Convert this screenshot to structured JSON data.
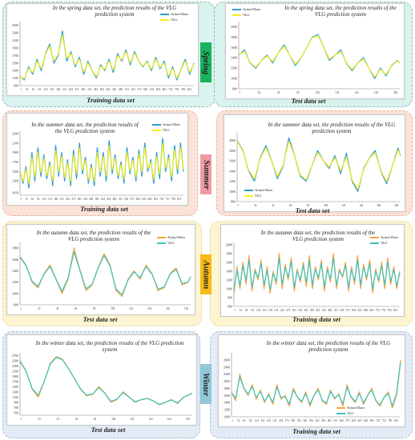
{
  "colors": {
    "spring_bg": "#d9f3ef",
    "summer_bg": "#fbe3d9",
    "autumn_bg": "#fdf5d2",
    "winter_bg": "#e3ecf6",
    "actual_blue": "#2c9ad6",
    "vlg_yellow": "#f2ef1c",
    "actual_orange": "#f7a541",
    "vlg_teal": "#3cc3b9",
    "spring_tag": "#18b25c",
    "summer_tag": "#f29aa3",
    "autumn_tag": "#f7ba18",
    "winter_tag": "#8fc8d8"
  },
  "seasons": [
    {
      "label": "Spring"
    },
    {
      "label": "Summer"
    },
    {
      "label": "Autumn"
    },
    {
      "label": "Winter"
    }
  ],
  "chart_data": [
    {
      "id": "spring-train",
      "type": "line",
      "season": "Spring",
      "title": "In the spring data set, the prediction results of the VLG prediction system",
      "xlabel": "Training data set",
      "ylim": [
        900,
        2600
      ],
      "yticks": [
        "900",
        "1100",
        "1300",
        "1500",
        "1700",
        "1900",
        "2100",
        "2300",
        "2500"
      ],
      "xticks": [
        "1",
        "31",
        "61",
        "91",
        "121",
        "151",
        "181",
        "211",
        "241",
        "271",
        "301",
        "331",
        "361",
        "391",
        "421",
        "451",
        "481",
        "511",
        "541",
        "571",
        "601",
        "631",
        "661",
        "691",
        "721",
        "751",
        "781",
        "811"
      ],
      "series": [
        {
          "name": "Actual Data",
          "color": "#2c9ad6"
        },
        {
          "name": "VLG",
          "color": "#f2ef1c"
        }
      ],
      "x": [
        1,
        21,
        41,
        61,
        81,
        101,
        121,
        141,
        161,
        181,
        201,
        221,
        241,
        261,
        281,
        301,
        321,
        341,
        361,
        381,
        401,
        421,
        441,
        461,
        481,
        501,
        521,
        541,
        561,
        581,
        601,
        621,
        641,
        661,
        681,
        701,
        721,
        741,
        761,
        781,
        801,
        821
      ],
      "y": [
        1150,
        1050,
        1400,
        1200,
        1600,
        1300,
        1750,
        2000,
        1500,
        1700,
        2350,
        1550,
        1800,
        1400,
        1650,
        1200,
        1550,
        1300,
        1100,
        1450,
        1300,
        1600,
        1250,
        1750,
        1550,
        1850,
        1450,
        1800,
        1550,
        1400,
        1550,
        1300,
        1650,
        1350,
        1550,
        1100,
        1400,
        1050,
        1350,
        1600,
        1200,
        1500
      ]
    },
    {
      "id": "spring-test",
      "type": "line",
      "season": "Spring",
      "title": "In the spring data set, the prediction results of the VLG prediction system",
      "xlabel": "Test data set",
      "ylim": [
        800,
        2100
      ],
      "yticks": [
        "800",
        "1000",
        "1200",
        "1400",
        "1600",
        "1800",
        "2000"
      ],
      "xticks": [
        "1",
        "32",
        "41",
        "91",
        "101",
        "121",
        "141",
        "161",
        "181"
      ],
      "series": [
        {
          "name": "Actual Data",
          "color": "#2c9ad6"
        },
        {
          "name": "VLG",
          "color": "#f2ef1c"
        }
      ],
      "x": [
        1,
        8,
        15,
        22,
        29,
        36,
        43,
        50,
        57,
        64,
        71,
        78,
        85,
        92,
        99,
        106,
        113,
        120,
        127,
        134,
        141,
        148,
        155,
        162,
        169,
        176,
        183,
        190,
        197,
        200
      ],
      "y": [
        1450,
        1550,
        1300,
        1200,
        1350,
        1450,
        1300,
        1500,
        1650,
        1450,
        1250,
        1400,
        1600,
        1800,
        1850,
        1600,
        1350,
        1450,
        1550,
        1300,
        1150,
        1300,
        1400,
        1200,
        1000,
        1200,
        1050,
        1250,
        1350,
        1300
      ]
    },
    {
      "id": "summer-train",
      "type": "line",
      "season": "Summer",
      "title": "In the summer data set, the prediction results of the VLG prediction system",
      "xlabel": "Training data set",
      "ylim": [
        1000,
        2350
      ],
      "yticks": [
        "1050",
        "1300",
        "1500",
        "1700",
        "1900",
        "2100",
        "2300"
      ],
      "xticks": [
        "1",
        "31",
        "61",
        "91",
        "121",
        "151",
        "181",
        "211",
        "241",
        "271",
        "301",
        "331",
        "361",
        "391",
        "421",
        "451",
        "481",
        "511",
        "541",
        "571",
        "601",
        "631",
        "661",
        "691",
        "721",
        "751",
        "781",
        "811"
      ],
      "series": [
        {
          "name": "Actual Data",
          "color": "#2c9ad6"
        },
        {
          "name": "VLG",
          "color": "#f2ef1c"
        }
      ],
      "x": [
        1,
        16,
        31,
        46,
        61,
        76,
        91,
        106,
        121,
        136,
        151,
        166,
        181,
        196,
        211,
        226,
        241,
        256,
        271,
        286,
        301,
        316,
        331,
        346,
        361,
        376,
        391,
        406,
        421,
        436,
        451,
        466,
        481,
        496,
        511,
        526,
        541,
        556,
        571,
        586,
        601,
        616,
        631,
        646,
        661,
        676,
        691,
        706,
        721,
        736,
        751,
        766,
        781,
        796,
        811,
        826
      ],
      "y": [
        1500,
        1250,
        1600,
        1150,
        1900,
        1300,
        2000,
        1400,
        1850,
        1350,
        1700,
        1200,
        2050,
        1400,
        1900,
        1300,
        1750,
        1200,
        1950,
        1350,
        2100,
        1450,
        1800,
        1250,
        1650,
        1200,
        2000,
        1400,
        1900,
        1300,
        2150,
        1450,
        1850,
        1350,
        1700,
        1250,
        2000,
        1450,
        1800,
        1300,
        1950,
        1400,
        2100,
        1500,
        1750,
        1250,
        1900,
        1350,
        2200,
        1500,
        1850,
        1300,
        2050,
        1450,
        2100,
        1500
      ]
    },
    {
      "id": "summer-test",
      "type": "line",
      "season": "Summer",
      "title": "In the summer data set, the prediction results of the VLG prediction system",
      "xlabel": "Test data set",
      "ylim": [
        800,
        2150
      ],
      "yticks": [
        "800",
        "1000",
        "1200",
        "1400",
        "1600",
        "1800",
        "2000"
      ],
      "xticks": [
        "1",
        "21",
        "41",
        "61",
        "81",
        "101",
        "121",
        "141",
        "161",
        "181"
      ],
      "series": [
        {
          "name": "Actual Data",
          "color": "#2c9ad6"
        },
        {
          "name": "VLG",
          "color": "#f2ef1c"
        }
      ],
      "x": [
        1,
        8,
        15,
        22,
        29,
        36,
        43,
        50,
        57,
        64,
        71,
        78,
        85,
        92,
        99,
        106,
        113,
        120,
        127,
        134,
        141,
        148,
        155,
        162,
        169,
        176,
        183,
        190,
        197,
        200
      ],
      "y": [
        2000,
        1800,
        1400,
        1200,
        1650,
        1900,
        1600,
        1250,
        1500,
        2050,
        1700,
        1300,
        1200,
        1500,
        1800,
        1600,
        1450,
        1700,
        1350,
        1750,
        1200,
        1000,
        1450,
        1650,
        1800,
        1400,
        1150,
        1500,
        1850,
        1700
      ]
    },
    {
      "id": "autumn-test",
      "type": "line",
      "season": "Autumn",
      "title": "In the autumn data set, the prediction results of the VLG prediction system",
      "xlabel": "Test data set",
      "ylim": [
        800,
        1900
      ],
      "yticks": [
        "800",
        "1000",
        "1200",
        "1400",
        "1600",
        "1800"
      ],
      "xticks": [
        "1",
        "21",
        "41",
        "61",
        "81",
        "101",
        "121",
        "141",
        "161",
        "181"
      ],
      "series": [
        {
          "name": "Actual Data",
          "color": "#f7a541"
        },
        {
          "name": "VLG",
          "color": "#3cc3b9"
        }
      ],
      "x": [
        1,
        8,
        15,
        22,
        29,
        36,
        43,
        50,
        57,
        64,
        71,
        78,
        85,
        92,
        99,
        106,
        113,
        120,
        127,
        134,
        141,
        148,
        155,
        162,
        169,
        176,
        183,
        190,
        197,
        200
      ],
      "y": [
        1650,
        1500,
        1200,
        1100,
        1350,
        1500,
        1250,
        1000,
        1250,
        1800,
        1400,
        1050,
        1150,
        1450,
        1700,
        1500,
        1050,
        950,
        1250,
        1400,
        1250,
        1500,
        1350,
        1050,
        1100,
        1350,
        1450,
        1150,
        1200,
        1300
      ]
    },
    {
      "id": "autumn-train",
      "type": "line",
      "season": "Autumn",
      "title": "In the autumn data set, the prediction results of the VLG prediction system",
      "xlabel": "Training data set",
      "ylim": [
        600,
        2050
      ],
      "yticks": [
        "600",
        "800",
        "1000",
        "1200",
        "1400",
        "1600",
        "1800",
        "2000"
      ],
      "xticks": [
        "1",
        "31",
        "61",
        "91",
        "121",
        "151",
        "181",
        "211",
        "241",
        "271",
        "301",
        "331",
        "361",
        "391",
        "421",
        "451",
        "481",
        "511",
        "541",
        "571",
        "601",
        "631",
        "661",
        "691",
        "721",
        "751",
        "781",
        "811"
      ],
      "series": [
        {
          "name": "Actual Data",
          "color": "#f7a541"
        },
        {
          "name": "VLG",
          "color": "#3cc3b9"
        }
      ],
      "x": [
        1,
        16,
        31,
        46,
        61,
        76,
        91,
        106,
        121,
        136,
        151,
        166,
        181,
        196,
        211,
        226,
        241,
        256,
        271,
        286,
        301,
        316,
        331,
        346,
        361,
        376,
        391,
        406,
        421,
        436,
        451,
        466,
        481,
        496,
        511,
        526,
        541,
        556,
        571,
        586,
        601,
        616,
        631,
        646,
        661,
        676,
        691,
        706,
        721,
        736,
        751,
        766,
        781,
        796,
        811,
        826
      ],
      "y": [
        900,
        1500,
        1000,
        1600,
        1100,
        1750,
        950,
        1450,
        1200,
        1650,
        1000,
        1500,
        900,
        1400,
        1100,
        1800,
        1000,
        1550,
        1200,
        1700,
        950,
        1450,
        1150,
        1600,
        1050,
        1750,
        1000,
        1500,
        1200,
        1650,
        950,
        1500,
        1150,
        1800,
        1000,
        1450,
        1250,
        1600,
        950,
        1500,
        1100,
        1750,
        1000,
        1550,
        1200,
        1650,
        900,
        1450,
        1150,
        1600,
        1000,
        1700,
        1100,
        1500,
        1000,
        1400
      ]
    },
    {
      "id": "winter-test",
      "type": "line",
      "season": "Winter",
      "title": "In the winter data set, the prediction results of the VLG prediction system",
      "xlabel": "Test data set",
      "ylim": [
        400,
        2800
      ],
      "yticks": [
        "500",
        "700",
        "900",
        "1100",
        "1300",
        "1500",
        "1700",
        "1900",
        "2100",
        "2300",
        "2500",
        "2700"
      ],
      "xticks": [
        "1",
        "21",
        "41",
        "61",
        "81",
        "101",
        "121",
        "141",
        "161",
        "181"
      ],
      "series": [
        {
          "name": "Actual Data",
          "color": "#f7a541"
        },
        {
          "name": "VLG",
          "color": "#3cc3b9"
        }
      ],
      "x": [
        1,
        8,
        15,
        22,
        29,
        36,
        43,
        50,
        57,
        64,
        71,
        78,
        85,
        92,
        99,
        106,
        113,
        120,
        127,
        134,
        141,
        148,
        155,
        162,
        169,
        176,
        183,
        190,
        197,
        200
      ],
      "y": [
        2500,
        2100,
        1400,
        1100,
        1700,
        2400,
        2650,
        2550,
        2200,
        1800,
        1400,
        1150,
        1200,
        1500,
        1250,
        900,
        1000,
        1300,
        1100,
        900,
        1000,
        1050,
        950,
        800,
        900,
        1000,
        850,
        1100,
        1200,
        1250
      ]
    },
    {
      "id": "winter-train",
      "type": "line",
      "season": "Winter",
      "title": "In the winter data set, the prediction results of the VLG prediction system",
      "xlabel": "Training data set",
      "ylim": [
        1000,
        2800
      ],
      "yticks": [
        "1000",
        "1200",
        "1400",
        "1600",
        "1800",
        "2000",
        "2200",
        "2400",
        "2600"
      ],
      "xticks": [
        "1",
        "31",
        "61",
        "91",
        "121",
        "151",
        "181",
        "211",
        "241",
        "271",
        "301",
        "331",
        "361",
        "391",
        "421",
        "451",
        "481",
        "511",
        "541",
        "571",
        "601",
        "631",
        "661",
        "691",
        "721",
        "751",
        "781",
        "811"
      ],
      "series": [
        {
          "name": "Actual Data",
          "color": "#f7a541"
        },
        {
          "name": "VLG",
          "color": "#3cc3b9"
        }
      ],
      "x": [
        1,
        21,
        41,
        61,
        81,
        101,
        121,
        141,
        161,
        181,
        201,
        221,
        241,
        261,
        281,
        301,
        321,
        341,
        361,
        381,
        401,
        421,
        441,
        461,
        481,
        501,
        521,
        541,
        561,
        581,
        601,
        621,
        641,
        661,
        681,
        701,
        721,
        741,
        761,
        781,
        801,
        821
      ],
      "y": [
        1700,
        1450,
        2200,
        1800,
        1600,
        1900,
        1500,
        1750,
        1400,
        1650,
        1350,
        1900,
        1500,
        1600,
        1300,
        1800,
        1550,
        1400,
        1700,
        1300,
        1600,
        1800,
        1450,
        1350,
        1750,
        1500,
        1650,
        1300,
        1900,
        1550,
        1400,
        1700,
        1350,
        1600,
        1800,
        1450,
        1300,
        1550,
        1700,
        1250,
        1600,
        2600
      ]
    }
  ]
}
